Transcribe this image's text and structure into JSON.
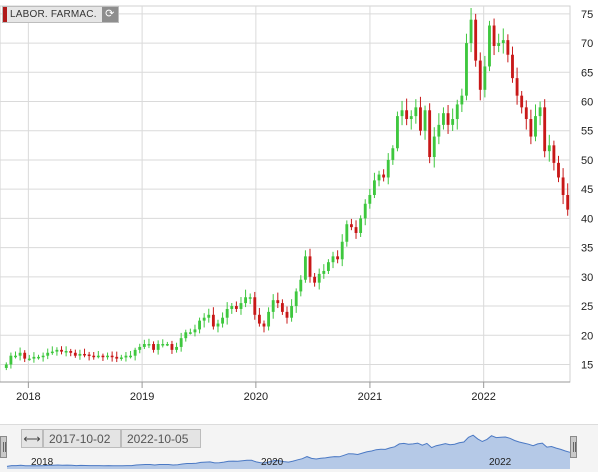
{
  "instrument": {
    "label": "LABOR. FARMAC.",
    "refresh_icon": "refresh-icon"
  },
  "navigator": {
    "range_icon": "horizontal-range-icon",
    "from_date": "2017-10-02",
    "to_date": "2022-10-05",
    "year_labels": [
      "2018",
      "2020",
      "2022"
    ]
  },
  "colors": {
    "up": "#3ec73e",
    "down": "#c81818",
    "navigator_fill": "#a9c1e4",
    "navigator_line": "#4b79c4"
  },
  "chart_data": {
    "type": "candlestick",
    "x_range": [
      "2017-10-02",
      "2022-10-05"
    ],
    "y_range": [
      12,
      76
    ],
    "y_ticks": [
      15,
      20,
      25,
      30,
      35,
      40,
      45,
      50,
      55,
      60,
      65,
      70,
      75
    ],
    "x_ticks": [
      "2018",
      "2019",
      "2020",
      "2021",
      "2022"
    ],
    "grid": true,
    "closes": [
      15.0,
      16.5,
      16.5,
      17.0,
      16.0,
      16.0,
      16.3,
      16.3,
      16.5,
      17.0,
      17.2,
      17.5,
      17.2,
      17.3,
      17.0,
      16.5,
      16.8,
      16.7,
      16.5,
      16.4,
      16.5,
      16.3,
      16.5,
      16.3,
      16.0,
      16.2,
      16.5,
      16.5,
      17.5,
      18.0,
      18.5,
      18.5,
      17.5,
      18.5,
      18.5,
      18.5,
      17.5,
      18.0,
      19.5,
      20.5,
      20.5,
      21.0,
      22.5,
      23.0,
      23.5,
      21.5,
      22.0,
      23.0,
      24.5,
      25.0,
      24.5,
      25.5,
      26.5,
      26.5,
      23.5,
      22.0,
      21.5,
      24.0,
      26.0,
      25.5,
      24.0,
      23.0,
      25.0,
      27.5,
      29.5,
      33.5,
      30.0,
      29.0,
      30.5,
      31.0,
      32.5,
      33.5,
      33.0,
      36.0,
      39.0,
      38.5,
      37.5,
      40.0,
      42.5,
      44.0,
      46.5,
      47.5,
      47.0,
      50.0,
      52.0,
      57.5,
      58.5,
      57.0,
      57.5,
      59.0,
      55.0,
      58.5,
      50.5,
      54.0,
      56.0,
      58.0,
      56.0,
      57.0,
      59.5,
      61.0,
      70.0,
      74.0,
      67.0,
      62.0,
      66.0,
      73.0,
      69.5,
      70.0,
      70.5,
      68.0,
      64.0,
      61.0,
      59.0,
      57.0,
      54.0,
      57.5,
      59.0,
      51.5,
      52.5,
      49.5,
      47.0,
      44.0,
      41.5
    ],
    "volatility": [
      0.9,
      0.9,
      0.9,
      0.9,
      0.9,
      0.9,
      0.9,
      0.9,
      0.9,
      0.9,
      0.9,
      0.9,
      0.9,
      0.9,
      0.9,
      0.9,
      0.9,
      0.9,
      0.9,
      0.9,
      0.9,
      0.9,
      0.9,
      0.9,
      0.9,
      0.9,
      0.9,
      0.9,
      0.9,
      0.9,
      0.9,
      0.9,
      0.9,
      0.9,
      0.9,
      0.9,
      0.9,
      0.9,
      0.9,
      0.9,
      0.9,
      0.9,
      1.3,
      1.3,
      1.3,
      1.3,
      1.3,
      1.3,
      1.3,
      1.3,
      1.3,
      1.3,
      1.3,
      1.3,
      1.3,
      1.3,
      1.3,
      1.3,
      1.3,
      1.3,
      1.3,
      1.3,
      1.3,
      1.3,
      1.3,
      1.3,
      1.3,
      1.3,
      1.3,
      1.3,
      1.3,
      1.3,
      1.3,
      1.3,
      1.3,
      1.3,
      1.3,
      1.3,
      1.3,
      1.3,
      1.3,
      1.3,
      1.3,
      1.3,
      1.3,
      1.3,
      2.0,
      2.0,
      2.0,
      2.0,
      2.0,
      2.0,
      2.0,
      2.0,
      2.0,
      2.0,
      2.0,
      2.0,
      2.0,
      2.0,
      2.0,
      2.0,
      2.0,
      2.0,
      2.0,
      2.0,
      2.0,
      2.0,
      2.0,
      2.0,
      2.0,
      2.0,
      2.0,
      2.0,
      2.0,
      2.0,
      2.0,
      2.0,
      2.0,
      2.0,
      2.0,
      2.0,
      2.0
    ]
  }
}
